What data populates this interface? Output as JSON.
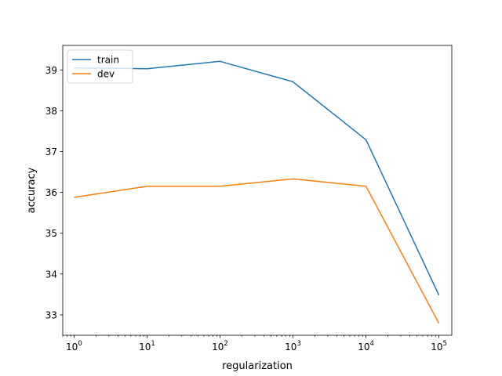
{
  "chart_data": {
    "type": "line",
    "title": "",
    "xlabel": "regularization",
    "ylabel": "accuracy",
    "xscale": "log",
    "x": [
      1,
      10,
      100,
      1000,
      10000,
      100000
    ],
    "xlim": [
      0.7,
      150000
    ],
    "ylim": [
      32.5,
      39.6
    ],
    "x_tick_labels": [
      {
        "base": "10",
        "exp": "0"
      },
      {
        "base": "10",
        "exp": "1"
      },
      {
        "base": "10",
        "exp": "2"
      },
      {
        "base": "10",
        "exp": "3"
      },
      {
        "base": "10",
        "exp": "4"
      },
      {
        "base": "10",
        "exp": "5"
      }
    ],
    "y_ticks": [
      33,
      34,
      35,
      36,
      37,
      38,
      39
    ],
    "grid": false,
    "legend": {
      "position": "top-left"
    },
    "series": [
      {
        "name": "train",
        "color": "#1f77b4",
        "values": [
          39.05,
          39.03,
          39.21,
          38.71,
          37.29,
          33.48
        ]
      },
      {
        "name": "dev",
        "color": "#ff7f0e",
        "values": [
          35.88,
          36.15,
          36.15,
          36.33,
          36.15,
          32.79
        ]
      }
    ]
  }
}
